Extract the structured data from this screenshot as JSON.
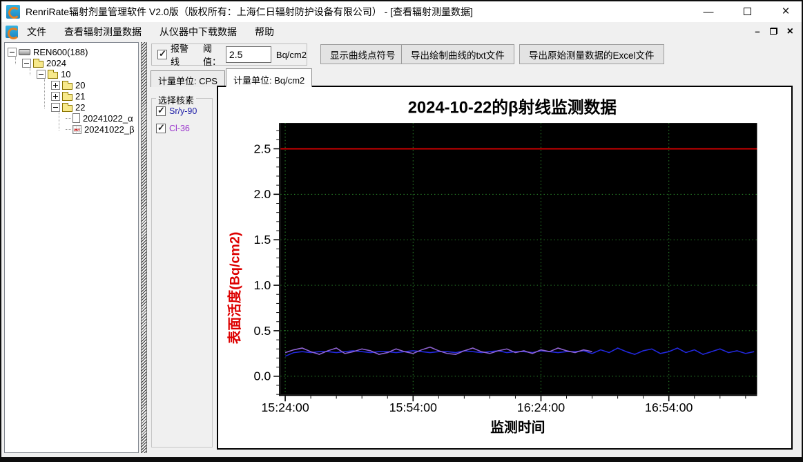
{
  "window": {
    "title": "RenriRate辐射剂量管理软件 V2.0版（版权所有：上海仁日辐射防护设备有限公司） - [查看辐射测量数据]",
    "controls": {
      "minimize": "—",
      "close": "×",
      "mdi_minimize": "–",
      "mdi_close": "×"
    }
  },
  "menu": {
    "items": [
      "文件",
      "查看辐射测量数据",
      "从仪器中下载数据",
      "帮助"
    ]
  },
  "tree": {
    "items": [
      {
        "label": "REN600(188)",
        "level": 0,
        "expander": "minus",
        "icon": "device-icon"
      },
      {
        "label": "2024",
        "level": 1,
        "expander": "minus",
        "icon": "folder-icon"
      },
      {
        "label": "10",
        "level": 2,
        "expander": "minus",
        "icon": "folder-icon"
      },
      {
        "label": "20",
        "level": 3,
        "expander": "plus",
        "icon": "folder-icon"
      },
      {
        "label": "21",
        "level": 3,
        "expander": "plus",
        "icon": "folder-icon"
      },
      {
        "label": "22",
        "level": 3,
        "expander": "minus",
        "icon": "folder-icon"
      },
      {
        "label": "20241022_α",
        "level": 4,
        "expander": "none",
        "icon": "document-icon"
      },
      {
        "label": "20241022_β",
        "level": 4,
        "expander": "none",
        "icon": "chart-file-icon"
      }
    ]
  },
  "toolbar": {
    "alarm_checkbox_label": "报警线",
    "alarm_checked": true,
    "threshold_label": "阈值：",
    "threshold_value": "2.5",
    "threshold_unit": "Bq/cm2",
    "show_points_button": "显示曲线点符号",
    "export_txt_button": "导出绘制曲线的txt文件",
    "export_excel_button": "导出原始测量数据的Excel文件"
  },
  "tabs": [
    {
      "label": "计量单位: CPS",
      "active": false
    },
    {
      "label": "计量单位: Bq/cm2",
      "active": true
    }
  ],
  "nuclide_panel": {
    "title": "选择核素",
    "items": [
      {
        "label": "Sr/y-90",
        "checked": true,
        "color": "#1a1aa6"
      },
      {
        "label": "Cl-36",
        "checked": true,
        "color": "#9933cc"
      }
    ]
  },
  "chart_data": {
    "type": "line",
    "title": "2024-10-22的β射线监测数据",
    "xlabel": "监测时间",
    "ylabel": "表面活度(Bq/cm2)",
    "ylabel_color": "#dd0000",
    "plot_bg": "#000000",
    "grid_color": "#2d8f2d",
    "ylim": [
      -0.2,
      2.78
    ],
    "x_start": "15:24:00",
    "x_end_min": 110.7,
    "x_major_ticks": [
      {
        "min": 0,
        "label": "15:24:00"
      },
      {
        "min": 30,
        "label": "15:54:00"
      },
      {
        "min": 60,
        "label": "16:24:00"
      },
      {
        "min": 90,
        "label": "16:54:00"
      }
    ],
    "x_minor_step_min": 6,
    "y_major_ticks": [
      {
        "value": 0.0,
        "label": "0.0"
      },
      {
        "value": 0.5,
        "label": "0.5"
      },
      {
        "value": 1.0,
        "label": "1.0"
      },
      {
        "value": 1.5,
        "label": "1.5"
      },
      {
        "value": 2.0,
        "label": "2.0"
      },
      {
        "value": 2.5,
        "label": "2.5"
      }
    ],
    "y_minor_step": 0.1,
    "alarm_line": {
      "value": 2.5,
      "color": "#cc0000"
    },
    "series": [
      {
        "name": "Sr/y-90",
        "color": "#2228dd",
        "start_min": 0,
        "step_min": 2,
        "values": [
          0.22,
          0.26,
          0.27,
          0.26,
          0.27,
          0.27,
          0.26,
          0.27,
          0.28,
          0.27,
          0.26,
          0.27,
          0.27,
          0.26,
          0.27,
          0.28,
          0.27,
          0.26,
          0.27,
          0.27,
          0.26,
          0.28,
          0.27,
          0.26,
          0.27,
          0.28,
          0.26,
          0.27,
          0.27,
          0.26,
          0.28,
          0.27,
          0.26,
          0.27,
          0.27,
          0.28,
          0.25,
          0.29,
          0.26,
          0.31,
          0.27,
          0.24,
          0.28,
          0.3,
          0.25,
          0.27,
          0.31,
          0.26,
          0.29,
          0.24,
          0.27,
          0.3,
          0.26,
          0.28,
          0.25,
          0.27
        ]
      },
      {
        "name": "Cl-36",
        "color": "#8f63d2",
        "start_min": 0,
        "step_min": 2,
        "values": [
          0.26,
          0.29,
          0.31,
          0.27,
          0.24,
          0.28,
          0.31,
          0.25,
          0.27,
          0.3,
          0.28,
          0.24,
          0.26,
          0.3,
          0.27,
          0.25,
          0.29,
          0.32,
          0.28,
          0.25,
          0.24,
          0.28,
          0.31,
          0.27,
          0.25,
          0.28,
          0.3,
          0.26,
          0.28,
          0.25,
          0.29,
          0.27,
          0.31,
          0.28,
          0.26,
          0.29,
          0.27
        ]
      }
    ]
  }
}
